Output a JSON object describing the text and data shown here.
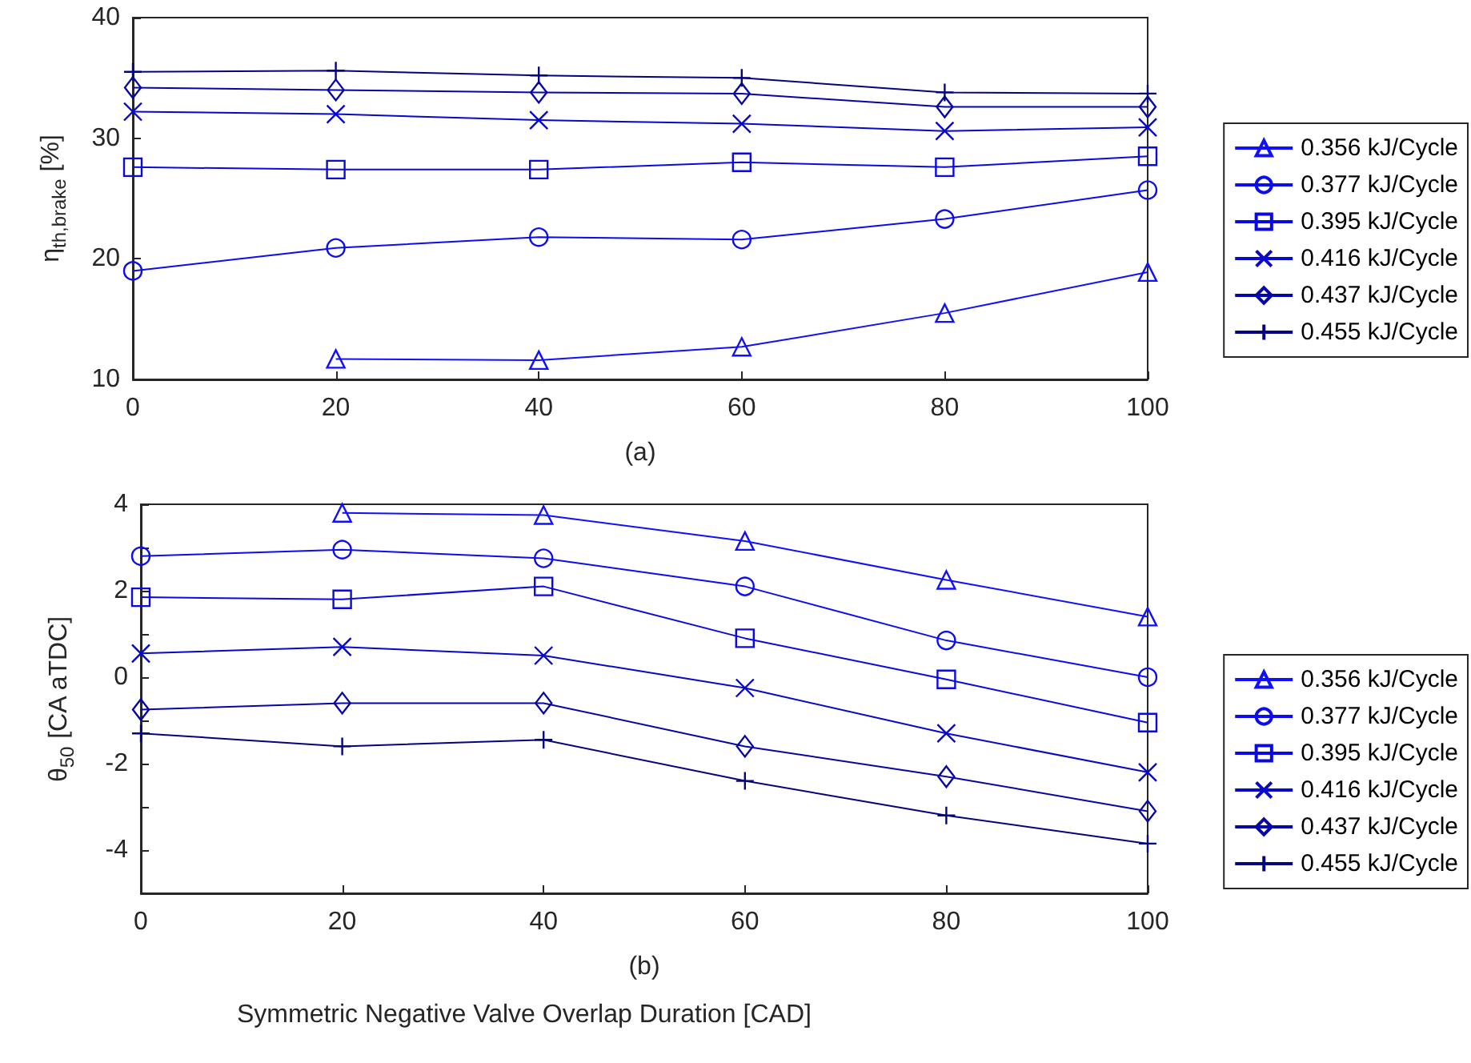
{
  "chart_data": [
    {
      "type": "line",
      "xlabel": "(a)",
      "ylabel": "η$_{th,brake}$ [%]",
      "x": [
        0,
        20,
        40,
        60,
        80,
        100
      ],
      "xlim": [
        0,
        100
      ],
      "xticks": [
        0,
        20,
        40,
        60,
        80,
        100
      ],
      "ylim": [
        10,
        40
      ],
      "yticks": [
        10,
        20,
        30,
        40
      ],
      "grid": false,
      "legend": "right",
      "line_style": "solid",
      "series": [
        {
          "name": "0.356 kJ/Cycle",
          "color": "#1010ff",
          "marker": "triangle",
          "values": [
            null,
            11.7,
            11.6,
            12.7,
            15.5,
            18.9
          ]
        },
        {
          "name": "0.377 kJ/Cycle",
          "color": "#0c0cf0",
          "marker": "circle",
          "values": [
            19.0,
            20.9,
            21.8,
            21.6,
            23.3,
            25.7
          ]
        },
        {
          "name": "0.395 kJ/Cycle",
          "color": "#0a0ae0",
          "marker": "square",
          "values": [
            27.6,
            27.4,
            27.4,
            28.0,
            27.6,
            28.5
          ]
        },
        {
          "name": "0.416 kJ/Cycle",
          "color": "#0808c8",
          "marker": "cross",
          "values": [
            32.2,
            32.0,
            31.5,
            31.2,
            30.6,
            30.9
          ]
        },
        {
          "name": "0.437 kJ/Cycle",
          "color": "#0606a8",
          "marker": "diamond",
          "values": [
            34.2,
            34.0,
            33.8,
            33.7,
            32.6,
            32.6
          ]
        },
        {
          "name": "0.455 kJ/Cycle",
          "color": "#040480",
          "marker": "plus",
          "values": [
            35.5,
            35.6,
            35.2,
            35.0,
            33.8,
            33.7
          ]
        }
      ]
    },
    {
      "type": "line",
      "xlabel": "(b)",
      "ylabel": "θ$_{50}$ [CA aTDC]",
      "annotations": [
        "Symmetric Negative Valve Overlap Duration [CAD]"
      ],
      "x": [
        0,
        20,
        40,
        60,
        80,
        100
      ],
      "xlim": [
        0,
        100
      ],
      "xticks": [
        0,
        20,
        40,
        60,
        80,
        100
      ],
      "ylim": [
        -5,
        4
      ],
      "yticks": [
        {
          "value": -5,
          "label": null
        },
        -4,
        {
          "value": -3,
          "label": null
        },
        -2,
        {
          "value": -1,
          "label": null
        },
        0,
        {
          "value": 1,
          "label": null
        },
        2,
        {
          "value": 3,
          "label": null
        },
        4
      ],
      "grid": false,
      "legend": "right",
      "line_style": "solid",
      "series": [
        {
          "name": "0.356 kJ/Cycle",
          "color": "#1010ff",
          "marker": "triangle",
          "values": [
            null,
            3.8,
            3.75,
            3.15,
            2.25,
            1.4
          ]
        },
        {
          "name": "0.377 kJ/Cycle",
          "color": "#0c0cf0",
          "marker": "circle",
          "values": [
            2.8,
            2.95,
            2.75,
            2.1,
            0.85,
            0.0
          ]
        },
        {
          "name": "0.395 kJ/Cycle",
          "color": "#0a0ae0",
          "marker": "square",
          "values": [
            1.85,
            1.8,
            2.1,
            0.9,
            -0.05,
            -1.05
          ]
        },
        {
          "name": "0.416 kJ/Cycle",
          "color": "#0808c8",
          "marker": "cross",
          "values": [
            0.55,
            0.7,
            0.5,
            -0.25,
            -1.3,
            -2.2
          ]
        },
        {
          "name": "0.437 kJ/Cycle",
          "color": "#0606a8",
          "marker": "diamond",
          "values": [
            -0.75,
            -0.6,
            -0.6,
            -1.6,
            -2.3,
            -3.1
          ]
        },
        {
          "name": "0.455 kJ/Cycle",
          "color": "#040480",
          "marker": "plus",
          "values": [
            -1.3,
            -1.6,
            -1.45,
            -2.4,
            -3.2,
            -3.85
          ]
        }
      ]
    }
  ]
}
